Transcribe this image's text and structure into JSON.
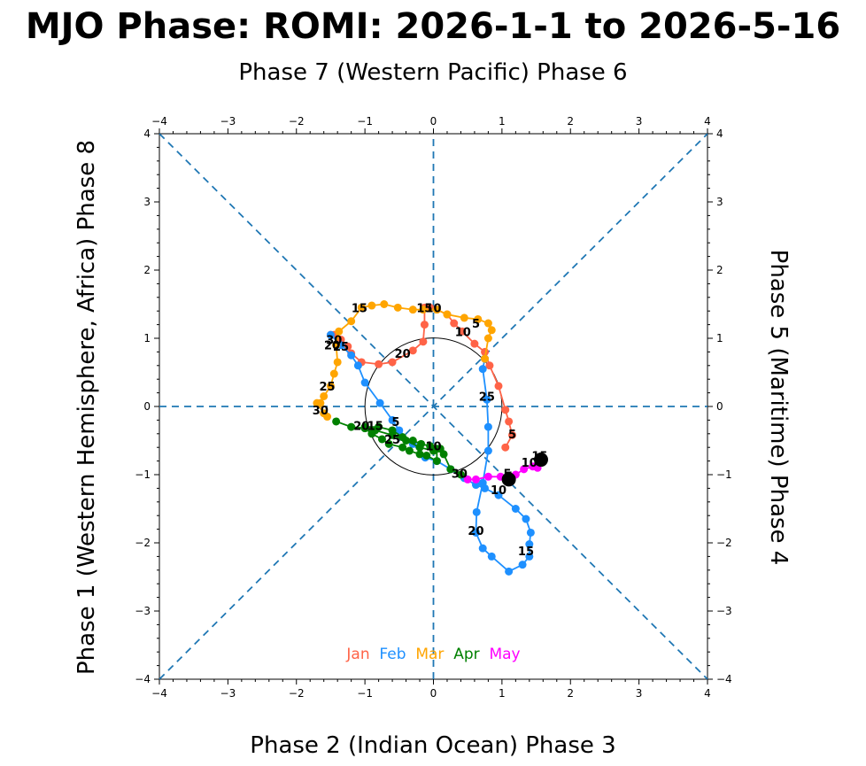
{
  "chart_data": {
    "type": "line",
    "title": "MJO Phase: ROMI: 2026-1-1 to 2026-5-16",
    "axis_labels": {
      "top": "Phase 7 (Western Pacific) Phase 6",
      "bottom": "Phase 2 (Indian Ocean) Phase 3",
      "left": "Phase 1 (Western Hemisphere, Africa) Phase 8",
      "right": "Phase 5 (Maritime) Phase 4"
    },
    "xlim": [
      -4,
      4
    ],
    "ylim": [
      -4,
      4
    ],
    "ticks": [
      "−4",
      "−3",
      "−2",
      "−1",
      "0",
      "1",
      "2",
      "3",
      "4"
    ],
    "tick_values": [
      -4,
      -3,
      -2,
      -1,
      0,
      1,
      2,
      3,
      4
    ],
    "unit_circle_radius": 1,
    "phase_lines": "dashed",
    "legend": {
      "placement": "bottom-center",
      "entries": [
        "Jan",
        "Feb",
        "Mar",
        "Apr",
        "May"
      ]
    },
    "series": [
      {
        "name": "Jan",
        "color": "#ff6347",
        "points": [
          [
            1.05,
            -0.6
          ],
          [
            1.15,
            -0.42
          ],
          [
            1.1,
            -0.22
          ],
          [
            1.05,
            -0.05
          ],
          [
            0.95,
            0.3
          ],
          [
            0.82,
            0.6
          ],
          [
            0.75,
            0.8
          ],
          [
            0.6,
            0.92
          ],
          [
            0.42,
            1.1
          ],
          [
            0.3,
            1.22
          ],
          [
            0.2,
            1.35
          ],
          [
            0.05,
            1.42
          ],
          [
            -0.05,
            1.45
          ],
          [
            -0.13,
            1.45
          ],
          [
            -0.13,
            1.2
          ],
          [
            -0.15,
            0.95
          ],
          [
            -0.3,
            0.82
          ],
          [
            -0.6,
            0.65
          ],
          [
            -0.8,
            0.62
          ],
          [
            -1.05,
            0.65
          ],
          [
            -1.2,
            0.78
          ],
          [
            -1.25,
            0.88
          ],
          [
            -1.35,
            0.98
          ],
          [
            -1.45,
            1.05
          ],
          [
            -1.5,
            1.05
          ]
        ],
        "labels": [
          {
            "day": "5",
            "x": 1.15,
            "y": -0.4
          },
          {
            "day": "10",
            "x": 0.0,
            "y": 1.45
          },
          {
            "day": "15",
            "x": -0.13,
            "y": 1.45
          },
          {
            "day": "20",
            "x": -0.45,
            "y": 0.78
          },
          {
            "day": "25",
            "x": -1.35,
            "y": 0.88
          },
          {
            "day": "30",
            "x": -1.45,
            "y": 0.98
          }
        ]
      },
      {
        "name": "Feb",
        "color": "#1e90ff",
        "points": [
          [
            -1.5,
            1.05
          ],
          [
            -1.35,
            0.9
          ],
          [
            -1.2,
            0.75
          ],
          [
            -1.1,
            0.6
          ],
          [
            -1.0,
            0.35
          ],
          [
            -0.78,
            0.05
          ],
          [
            -0.6,
            -0.2
          ],
          [
            -0.5,
            -0.35
          ],
          [
            -0.3,
            -0.55
          ],
          [
            -0.12,
            -0.75
          ],
          [
            0.05,
            -0.8
          ],
          [
            0.25,
            -0.92
          ],
          [
            0.45,
            -1.05
          ],
          [
            0.62,
            -1.15
          ],
          [
            0.75,
            -1.2
          ],
          [
            0.95,
            -1.3
          ],
          [
            1.2,
            -1.5
          ],
          [
            1.35,
            -1.65
          ],
          [
            1.42,
            -1.85
          ],
          [
            1.4,
            -2.02
          ],
          [
            1.4,
            -2.2
          ],
          [
            1.3,
            -2.32
          ],
          [
            1.1,
            -2.42
          ],
          [
            0.85,
            -2.2
          ],
          [
            0.72,
            -2.08
          ],
          [
            0.62,
            -1.85
          ],
          [
            0.63,
            -1.55
          ],
          [
            0.72,
            -1.12
          ],
          [
            0.8,
            -0.65
          ],
          [
            0.8,
            -0.3
          ],
          [
            0.78,
            0.1
          ],
          [
            0.72,
            0.55
          ],
          [
            0.75,
            0.7
          ]
        ],
        "labels": [
          {
            "day": "5",
            "x": 1.1,
            "y": -1.02
          },
          {
            "day": "10",
            "x": 0.95,
            "y": -1.22
          },
          {
            "day": "15",
            "x": 1.35,
            "y": -2.12
          },
          {
            "day": "20",
            "x": 0.62,
            "y": -1.82
          },
          {
            "day": "25",
            "x": 0.78,
            "y": 0.15
          }
        ]
      },
      {
        "name": "Mar",
        "color": "#ffa500",
        "points": [
          [
            0.75,
            0.7
          ],
          [
            0.8,
            1.0
          ],
          [
            0.85,
            1.12
          ],
          [
            0.8,
            1.22
          ],
          [
            0.65,
            1.28
          ],
          [
            0.45,
            1.3
          ],
          [
            0.2,
            1.35
          ],
          [
            0.05,
            1.42
          ],
          [
            -0.15,
            1.42
          ],
          [
            -0.3,
            1.42
          ],
          [
            -0.52,
            1.45
          ],
          [
            -0.72,
            1.5
          ],
          [
            -0.9,
            1.48
          ],
          [
            -1.05,
            1.45
          ],
          [
            -1.2,
            1.25
          ],
          [
            -1.38,
            1.1
          ],
          [
            -1.42,
            0.9
          ],
          [
            -1.4,
            0.65
          ],
          [
            -1.45,
            0.48
          ],
          [
            -1.5,
            0.3
          ],
          [
            -1.6,
            0.15
          ],
          [
            -1.65,
            0.05
          ],
          [
            -1.7,
            0.05
          ],
          [
            -1.6,
            -0.1
          ],
          [
            -1.55,
            -0.15
          ]
        ],
        "labels": [
          {
            "day": "5",
            "x": 0.62,
            "y": 1.22
          },
          {
            "day": "10",
            "x": 0.43,
            "y": 1.1
          },
          {
            "day": "15",
            "x": -1.08,
            "y": 1.45
          },
          {
            "day": "20",
            "x": -1.48,
            "y": 0.9
          },
          {
            "day": "25",
            "x": -1.55,
            "y": 0.3
          },
          {
            "day": "30",
            "x": -1.65,
            "y": -0.05
          }
        ]
      },
      {
        "name": "Apr",
        "color": "#008000",
        "points": [
          [
            -1.42,
            -0.22
          ],
          [
            -1.2,
            -0.3
          ],
          [
            -1.0,
            -0.32
          ],
          [
            -0.9,
            -0.4
          ],
          [
            -0.75,
            -0.48
          ],
          [
            -0.65,
            -0.55
          ],
          [
            -0.45,
            -0.6
          ],
          [
            -0.35,
            -0.65
          ],
          [
            -0.2,
            -0.7
          ],
          [
            -0.1,
            -0.72
          ],
          [
            0.05,
            -0.8
          ],
          [
            0.05,
            -0.62
          ],
          [
            -0.05,
            -0.58
          ],
          [
            -0.18,
            -0.55
          ],
          [
            -0.3,
            -0.5
          ],
          [
            -0.45,
            -0.45
          ],
          [
            -0.6,
            -0.35
          ],
          [
            -0.8,
            -0.3
          ],
          [
            -1.0,
            -0.3
          ],
          [
            -0.85,
            -0.35
          ],
          [
            -0.6,
            -0.42
          ],
          [
            -0.4,
            -0.5
          ],
          [
            -0.2,
            -0.6
          ],
          [
            0.0,
            -0.65
          ],
          [
            0.1,
            -0.62
          ],
          [
            0.15,
            -0.7
          ],
          [
            0.25,
            -0.92
          ],
          [
            0.4,
            -1.0
          ]
        ],
        "labels": [
          {
            "day": "5",
            "x": -0.55,
            "y": -0.22
          },
          {
            "day": "10",
            "x": 0.0,
            "y": -0.58
          },
          {
            "day": "15",
            "x": -0.85,
            "y": -0.28
          },
          {
            "day": "20",
            "x": -1.05,
            "y": -0.28
          },
          {
            "day": "25",
            "x": -0.6,
            "y": -0.48
          },
          {
            "day": "30",
            "x": 0.38,
            "y": -0.98
          }
        ]
      },
      {
        "name": "May",
        "color": "#ff00ff",
        "points": [
          [
            0.5,
            -1.07
          ],
          [
            0.62,
            -1.07
          ],
          [
            0.8,
            -1.03
          ],
          [
            0.98,
            -1.03
          ],
          [
            1.1,
            -1.05
          ],
          [
            1.2,
            -1.0
          ],
          [
            1.32,
            -0.92
          ],
          [
            1.45,
            -0.88
          ],
          [
            1.52,
            -0.85
          ],
          [
            1.52,
            -0.9
          ],
          [
            1.55,
            -0.8
          ]
        ],
        "labels": [
          {
            "day": "5",
            "x": 1.08,
            "y": -0.98
          },
          {
            "day": "10",
            "x": 1.4,
            "y": -0.82
          },
          {
            "day": "15",
            "x": 1.55,
            "y": -0.72
          }
        ]
      }
    ],
    "markers": [
      {
        "label": "",
        "x": 1.1,
        "y": -1.07
      },
      {
        "label": "",
        "x": 1.57,
        "y": -0.78
      }
    ]
  }
}
